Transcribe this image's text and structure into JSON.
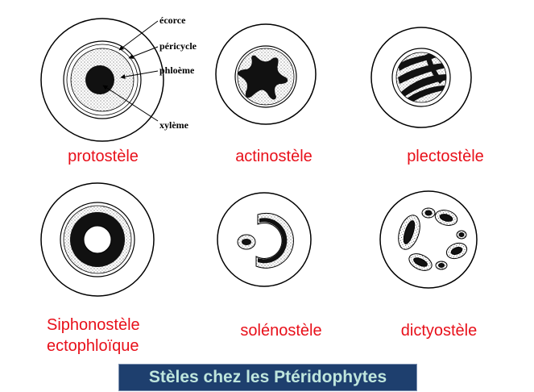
{
  "labels": {
    "ecorce": "écorce",
    "pericycle": "péricycle",
    "phloeme": "phloème",
    "xyleme": "xylème"
  },
  "captions": {
    "protostele": "protostèle",
    "actinostele": "actinostèle",
    "plectostele": "plectostèle",
    "siphonostele_line1": "Siphonostèle",
    "siphonostele_line2": "ectophloïque",
    "solenostele": "solénostèle",
    "dictyostele": "dictyostèle"
  },
  "banner": {
    "title": "Stèles chez les Ptéridophytes"
  },
  "colors": {
    "caption": "#e8101a",
    "banner_bg": "#1e3f6e",
    "banner_text": "#bfe6dd"
  }
}
